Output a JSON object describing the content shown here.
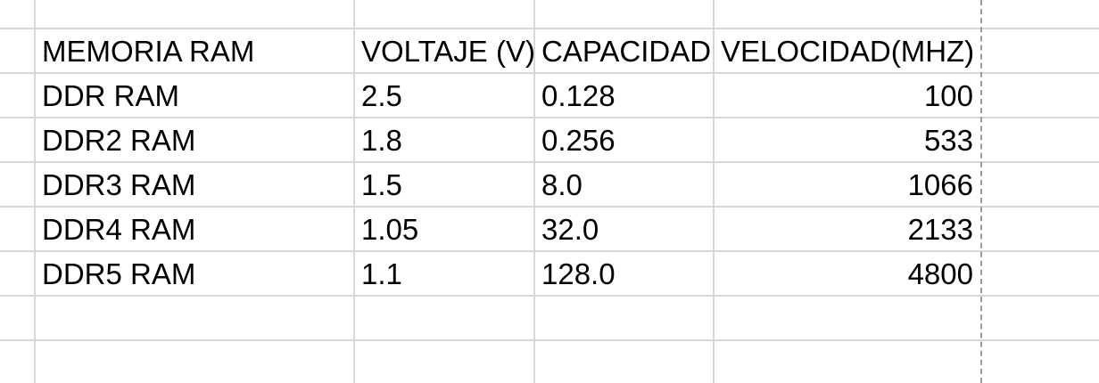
{
  "sheet": {
    "headers": [
      "MEMORIA RAM",
      "VOLTAJE (V)",
      "CAPACIDAD",
      "VELOCIDAD(MHZ)"
    ],
    "rows": [
      [
        "DDR RAM",
        "2.5",
        "0.128",
        "100"
      ],
      [
        "DDR2 RAM",
        "1.8",
        "0.256",
        "533"
      ],
      [
        "DDR3 RAM",
        "1.5",
        "8.0",
        "1066"
      ],
      [
        "DDR4 RAM",
        "1.05",
        "32.0",
        "2133"
      ],
      [
        "DDR5 RAM",
        "1.1",
        "128.0",
        "4800"
      ]
    ]
  }
}
